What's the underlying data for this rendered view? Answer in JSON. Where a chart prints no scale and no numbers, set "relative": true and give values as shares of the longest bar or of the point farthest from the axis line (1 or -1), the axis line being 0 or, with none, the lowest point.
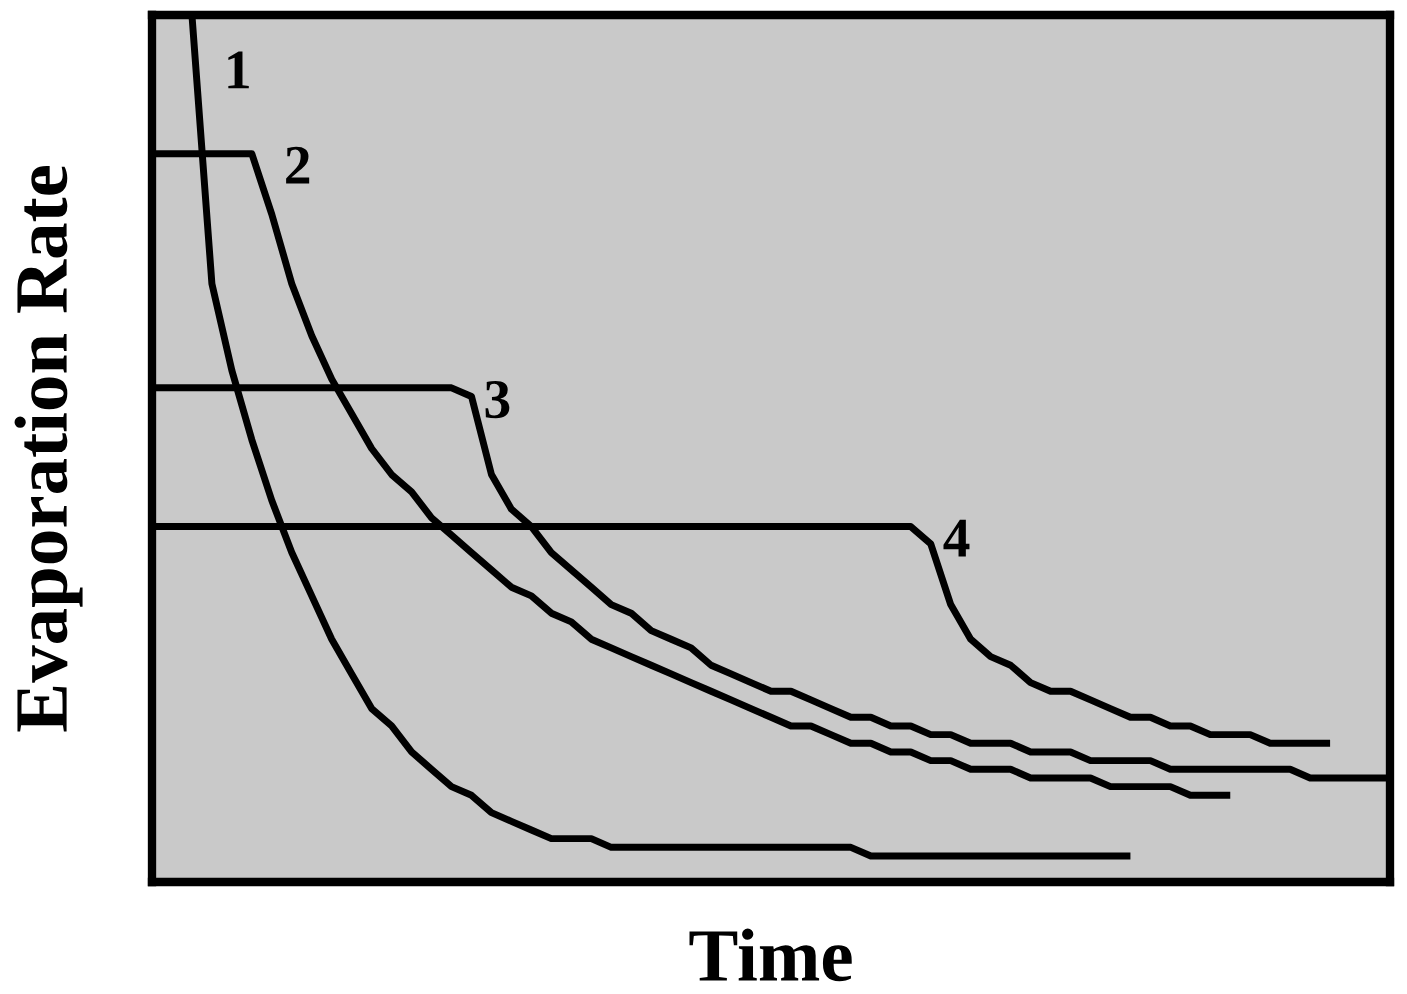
{
  "chart_data": {
    "type": "line",
    "relative": true,
    "xlabel": "Time",
    "ylabel": "Evaporation Rate",
    "categories": [
      null,
      null,
      null,
      null,
      null,
      null,
      null,
      null,
      null,
      null,
      null,
      null,
      null,
      null,
      null,
      null,
      null,
      null,
      null,
      null,
      null,
      null,
      null,
      null,
      null,
      null,
      null,
      null,
      null,
      null,
      null,
      null,
      null,
      null,
      null,
      null,
      null,
      null,
      null,
      null,
      null,
      null,
      null,
      null,
      null,
      null,
      null,
      null,
      null,
      null,
      null,
      null,
      null,
      null,
      null,
      null,
      null,
      null,
      null,
      null,
      null,
      null,
      null
    ],
    "series": [
      {
        "name": "1",
        "color": "#000000",
        "values": [
          null,
          null,
          1.0,
          0.69,
          0.59,
          0.51,
          0.44,
          0.38,
          0.33,
          0.28,
          0.24,
          0.2,
          0.18,
          0.15,
          0.13,
          0.11,
          0.1,
          0.08,
          0.07,
          0.06,
          0.05,
          0.05,
          0.05,
          0.04,
          0.04,
          0.04,
          0.04,
          0.04,
          0.04,
          0.04,
          0.04,
          0.04,
          0.04,
          0.04,
          0.04,
          0.04,
          0.03,
          0.03,
          0.03,
          0.03,
          0.03,
          0.03,
          0.03,
          0.03,
          0.03,
          0.03,
          0.03,
          0.03,
          0.03,
          0.03,
          null,
          null,
          null,
          null,
          null,
          null,
          null,
          null,
          null,
          null,
          null,
          null,
          null
        ]
      },
      {
        "name": "2",
        "color": "#000000",
        "values": [
          0.84,
          0.84,
          0.84,
          0.84,
          0.84,
          0.84,
          0.77,
          0.69,
          0.63,
          0.58,
          0.54,
          0.5,
          0.47,
          0.45,
          0.42,
          0.4,
          0.38,
          0.36,
          0.34,
          0.33,
          0.31,
          0.3,
          0.28,
          0.27,
          0.26,
          0.25,
          0.24,
          0.23,
          0.22,
          0.21,
          0.2,
          0.19,
          0.18,
          0.18,
          0.17,
          0.16,
          0.16,
          0.15,
          0.15,
          0.14,
          0.14,
          0.13,
          0.13,
          0.13,
          0.12,
          0.12,
          0.12,
          0.12,
          0.11,
          0.11,
          0.11,
          0.11,
          0.1,
          0.1,
          0.1,
          null,
          null,
          null,
          null,
          null,
          null,
          null,
          null
        ]
      },
      {
        "name": "3",
        "color": "#000000",
        "values": [
          0.57,
          0.57,
          0.57,
          0.57,
          0.57,
          0.57,
          0.57,
          0.57,
          0.57,
          0.57,
          0.57,
          0.57,
          0.57,
          0.57,
          0.57,
          0.57,
          0.56,
          0.47,
          0.43,
          0.41,
          0.38,
          0.36,
          0.34,
          0.32,
          0.31,
          0.29,
          0.28,
          0.27,
          0.25,
          0.24,
          0.23,
          0.22,
          0.22,
          0.21,
          0.2,
          0.19,
          0.19,
          0.18,
          0.18,
          0.17,
          0.17,
          0.16,
          0.16,
          0.16,
          0.15,
          0.15,
          0.15,
          0.14,
          0.14,
          0.14,
          0.14,
          0.13,
          0.13,
          0.13,
          0.13,
          0.13,
          0.13,
          0.13,
          0.12,
          0.12,
          0.12,
          0.12,
          0.12
        ]
      },
      {
        "name": "4",
        "color": "#000000",
        "values": [
          0.41,
          0.41,
          0.41,
          0.41,
          0.41,
          0.41,
          0.41,
          0.41,
          0.41,
          0.41,
          0.41,
          0.41,
          0.41,
          0.41,
          0.41,
          0.41,
          0.41,
          0.41,
          0.41,
          0.41,
          0.41,
          0.41,
          0.41,
          0.41,
          0.41,
          0.41,
          0.41,
          0.41,
          0.41,
          0.41,
          0.41,
          0.41,
          0.41,
          0.41,
          0.41,
          0.41,
          0.41,
          0.41,
          0.41,
          0.39,
          0.32,
          0.28,
          0.26,
          0.25,
          0.23,
          0.22,
          0.22,
          0.21,
          0.2,
          0.19,
          0.19,
          0.18,
          0.18,
          0.17,
          0.17,
          0.17,
          0.16,
          0.16,
          0.16,
          0.16,
          null,
          null,
          null
        ]
      }
    ]
  }
}
